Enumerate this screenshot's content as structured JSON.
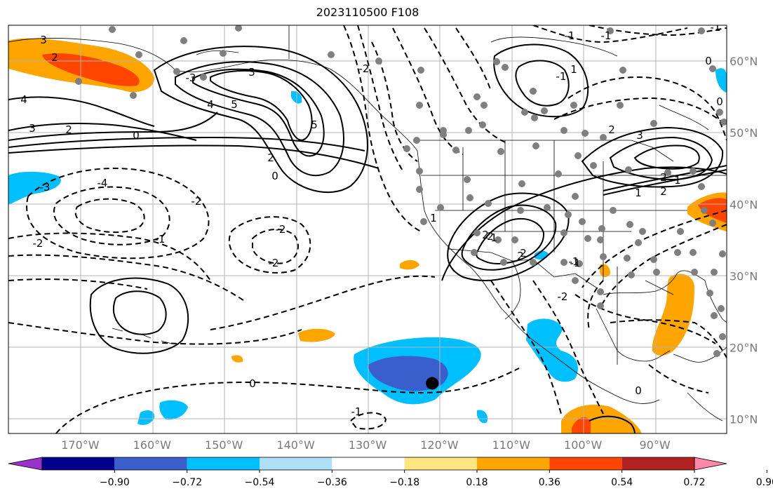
{
  "title": "2023110500 F108",
  "map": {
    "lon_range": [
      -180,
      -80
    ],
    "lat_range": [
      8,
      65
    ],
    "lon_ticks": [
      "170°W",
      "160°W",
      "150°W",
      "140°W",
      "130°W",
      "120°W",
      "110°W",
      "100°W",
      "90°W"
    ],
    "lat_ticks": [
      "60°N",
      "50°N",
      "40°N",
      "30°N",
      "20°N",
      "10°N"
    ],
    "contour_labels": [
      "3",
      "2",
      "4",
      "3",
      "2",
      "0",
      "-3",
      "-4",
      "-2",
      "-1",
      "-2",
      "-2",
      "-2",
      "0",
      "5",
      "3",
      "4",
      "5",
      "2",
      "0",
      "-2",
      "-3",
      "-1",
      "0",
      "-1",
      "1",
      "0",
      "-1",
      "2",
      "3",
      "2",
      "1",
      "2",
      "2",
      "1",
      "1",
      "2",
      "1",
      "-2",
      "-1",
      "0",
      "2",
      "2",
      "-1",
      "-1",
      "-1"
    ],
    "marker": {
      "lon": -121,
      "lat": 15
    }
  },
  "colorbar": {
    "ticks": [
      "−0.90",
      "−0.72",
      "−0.54",
      "−0.36",
      "−0.18",
      "0.18",
      "0.36",
      "0.54",
      "0.72",
      "0.90"
    ],
    "colors": [
      "#9932cc",
      "#00008b",
      "#3a5fcd",
      "#00bfff",
      "#b0e0f8",
      "#ffffff",
      "#ffe680",
      "#ffa500",
      "#ff4500",
      "#b22222",
      "#ff88aa"
    ]
  }
}
